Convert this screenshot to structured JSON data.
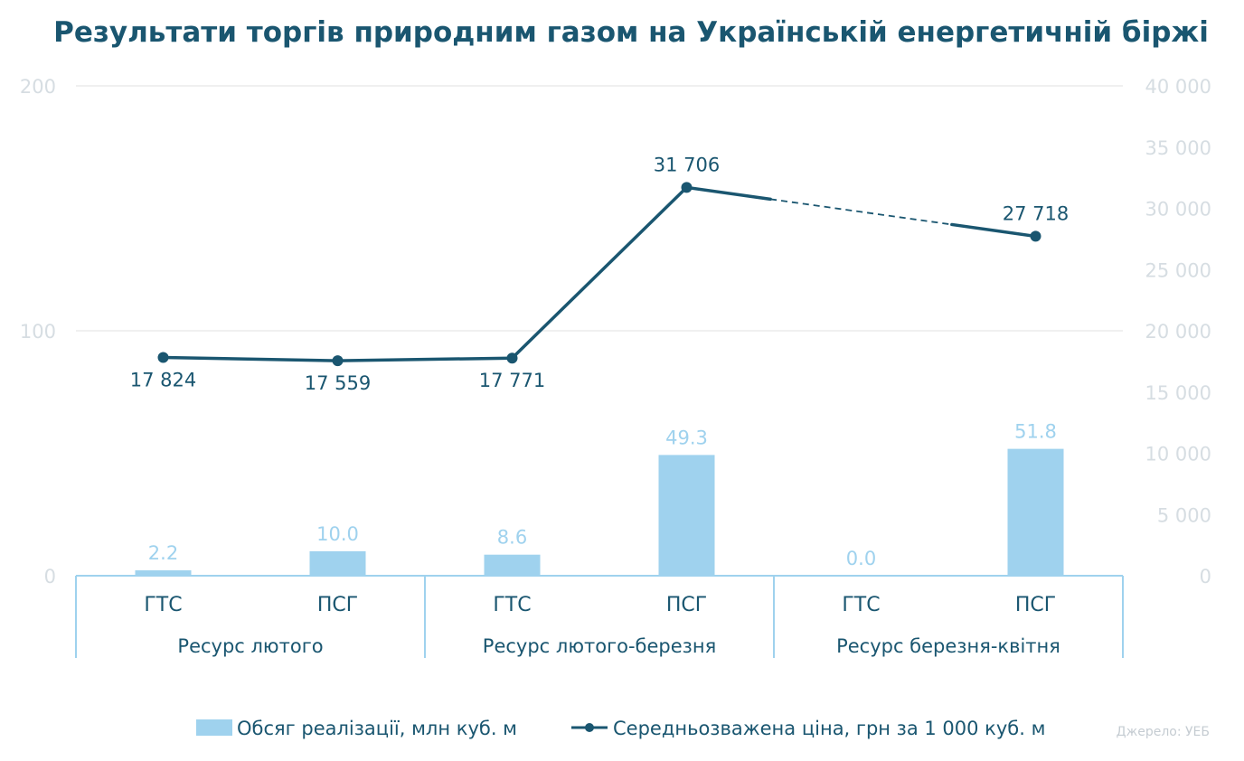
{
  "chart_data": {
    "type": "bar",
    "title": "Результати торгів природним газом на Українській енергетичній біржі",
    "categories": [
      "ГТС",
      "ПСГ",
      "ГТС",
      "ПСГ",
      "ГТС",
      "ПСГ"
    ],
    "groups": [
      {
        "label": "Ресурс лютого",
        "categories": [
          "ГТС",
          "ПСГ"
        ]
      },
      {
        "label": "Ресурс лютого-березня",
        "categories": [
          "ГТС",
          "ПСГ"
        ]
      },
      {
        "label": "Ресурс березня-квітня",
        "categories": [
          "ГТС",
          "ПСГ"
        ]
      }
    ],
    "series": [
      {
        "name": "Обсяг реалізації, млн куб. м",
        "type": "bar",
        "axis": "left",
        "values": [
          2.2,
          10.0,
          8.6,
          49.3,
          0.0,
          51.8
        ],
        "labels": [
          "2.2",
          "10.0",
          "8.6",
          "49.3",
          "0.0",
          "51.8"
        ],
        "color": "#9fd2ee"
      },
      {
        "name": "Середньозважена ціна, грн за 1 000 куб. м",
        "type": "line",
        "axis": "right",
        "values": [
          17824,
          17559,
          17771,
          31706,
          null,
          27718
        ],
        "labels": [
          "17 824",
          "17 559",
          "17 771",
          "31 706",
          "",
          "27 718"
        ],
        "color": "#1a5670",
        "dashed_gap": true
      }
    ],
    "y_left": {
      "ylim": [
        0,
        200
      ],
      "ticks": [
        0,
        100,
        200
      ],
      "tick_labels": [
        "0",
        "100",
        "200"
      ]
    },
    "y_right": {
      "ylim": [
        0,
        40000
      ],
      "ticks": [
        0,
        5000,
        10000,
        15000,
        20000,
        25000,
        30000,
        35000,
        40000
      ],
      "tick_labels": [
        "0",
        "5 000",
        "10 000",
        "15 000",
        "20 000",
        "25 000",
        "30 000",
        "35 000",
        "40 000"
      ]
    },
    "grid": true,
    "legend": "bottom",
    "source": "Джерело: УЕБ"
  }
}
